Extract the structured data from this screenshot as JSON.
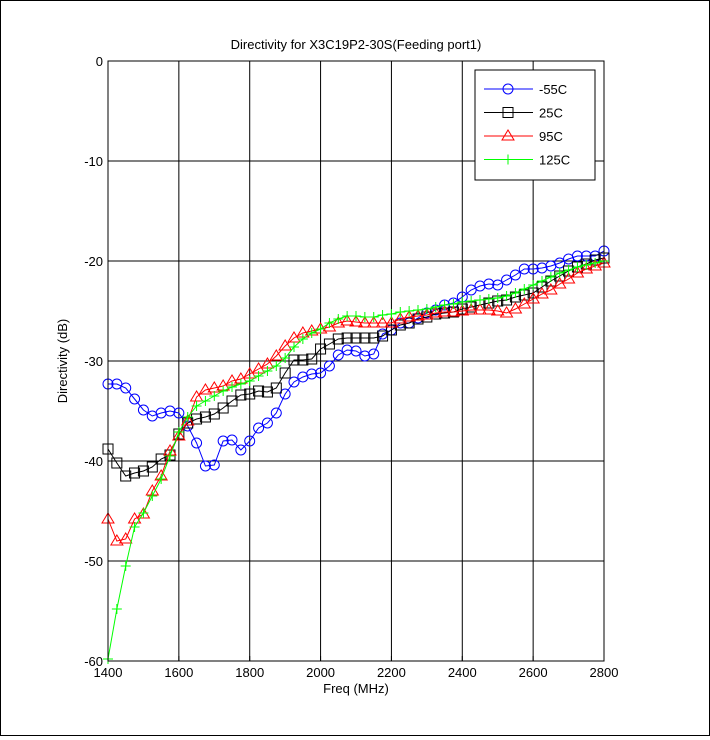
{
  "chart_data": {
    "type": "line",
    "title": "Directivity for X3C19P2-30S(Feeding port1)",
    "xlabel": "Freq (MHz)",
    "ylabel": "Directivity (dB)",
    "xlim": [
      1400,
      2800
    ],
    "ylim": [
      -60,
      0
    ],
    "xticks": [
      1400,
      1600,
      1800,
      2000,
      2200,
      2400,
      2600,
      2800
    ],
    "yticks": [
      0,
      -10,
      -20,
      -30,
      -40,
      -50,
      -60
    ],
    "grid": true,
    "legend_position": "top-right",
    "series": [
      {
        "name": "-55C",
        "color": "#0000ff",
        "marker": "circle",
        "x": [
          1400,
          1425,
          1450,
          1475,
          1500,
          1525,
          1550,
          1575,
          1600,
          1625,
          1650,
          1675,
          1700,
          1725,
          1750,
          1775,
          1800,
          1825,
          1850,
          1875,
          1900,
          1925,
          1950,
          1975,
          2000,
          2025,
          2050,
          2075,
          2100,
          2125,
          2150,
          2175,
          2200,
          2225,
          2250,
          2275,
          2300,
          2325,
          2350,
          2375,
          2400,
          2425,
          2450,
          2475,
          2500,
          2525,
          2550,
          2575,
          2600,
          2625,
          2650,
          2675,
          2700,
          2725,
          2750,
          2775,
          2800
        ],
        "y": [
          -32.3,
          -32.3,
          -32.7,
          -33.8,
          -34.9,
          -35.5,
          -35.2,
          -35.0,
          -35.2,
          -36.5,
          -38.2,
          -40.5,
          -40.4,
          -38.0,
          -37.9,
          -38.9,
          -38.0,
          -36.7,
          -36.2,
          -35.2,
          -33.3,
          -32.1,
          -31.6,
          -31.3,
          -31.2,
          -30.5,
          -29.4,
          -28.9,
          -29.0,
          -29.5,
          -29.3,
          -27.3,
          -26.9,
          -26.2,
          -26.2,
          -25.7,
          -25.2,
          -24.9,
          -24.4,
          -24.2,
          -23.6,
          -22.9,
          -22.5,
          -22.3,
          -22.4,
          -21.9,
          -21.4,
          -20.8,
          -20.8,
          -20.7,
          -20.5,
          -20.2,
          -19.8,
          -19.5,
          -19.5,
          -19.5,
          -19.0
        ]
      },
      {
        "name": "25C",
        "color": "#000000",
        "marker": "square",
        "x": [
          1400,
          1425,
          1450,
          1475,
          1500,
          1525,
          1550,
          1575,
          1600,
          1625,
          1650,
          1675,
          1700,
          1725,
          1750,
          1775,
          1800,
          1825,
          1850,
          1875,
          1900,
          1925,
          1950,
          1975,
          2000,
          2025,
          2050,
          2075,
          2100,
          2125,
          2150,
          2175,
          2200,
          2225,
          2250,
          2275,
          2300,
          2325,
          2350,
          2375,
          2400,
          2425,
          2450,
          2475,
          2500,
          2525,
          2550,
          2575,
          2600,
          2625,
          2650,
          2675,
          2700,
          2725,
          2750,
          2775,
          2800
        ],
        "y": [
          -38.8,
          -40.2,
          -41.5,
          -41.2,
          -41.0,
          -40.6,
          -39.8,
          -39.4,
          -37.3,
          -36.2,
          -35.8,
          -35.6,
          -35.3,
          -34.7,
          -34.0,
          -33.4,
          -33.3,
          -33.0,
          -33.1,
          -32.7,
          -31.2,
          -29.9,
          -29.9,
          -29.8,
          -28.8,
          -28.3,
          -27.8,
          -27.7,
          -27.7,
          -27.7,
          -27.7,
          -27.5,
          -26.9,
          -26.4,
          -26.2,
          -25.8,
          -25.6,
          -25.3,
          -25.2,
          -25.1,
          -24.8,
          -24.6,
          -24.4,
          -24.2,
          -24.0,
          -23.9,
          -23.6,
          -23.4,
          -23.2,
          -22.6,
          -22.0,
          -21.5,
          -21.0,
          -20.6,
          -20.3,
          -19.9,
          -19.7
        ]
      },
      {
        "name": "95C",
        "color": "#ff0000",
        "marker": "triangle",
        "x": [
          1400,
          1425,
          1450,
          1475,
          1500,
          1525,
          1550,
          1575,
          1600,
          1625,
          1650,
          1675,
          1700,
          1725,
          1750,
          1775,
          1800,
          1825,
          1850,
          1875,
          1900,
          1925,
          1950,
          1975,
          2000,
          2025,
          2050,
          2075,
          2100,
          2125,
          2150,
          2175,
          2200,
          2225,
          2250,
          2275,
          2300,
          2325,
          2350,
          2375,
          2400,
          2425,
          2450,
          2475,
          2500,
          2525,
          2550,
          2575,
          2600,
          2625,
          2650,
          2675,
          2700,
          2725,
          2750,
          2775,
          2800
        ],
        "y": [
          -45.8,
          -48.0,
          -47.8,
          -45.8,
          -45.3,
          -43.0,
          -41.5,
          -39.0,
          -37.5,
          -36.0,
          -33.6,
          -32.9,
          -32.7,
          -32.5,
          -32.0,
          -31.8,
          -31.3,
          -30.8,
          -30.3,
          -29.5,
          -28.5,
          -27.7,
          -27.2,
          -27.0,
          -26.8,
          -26.6,
          -26.2,
          -26.0,
          -26.1,
          -26.2,
          -26.2,
          -26.2,
          -26.2,
          -25.8,
          -25.6,
          -25.5,
          -25.4,
          -25.2,
          -25.1,
          -25.1,
          -25.0,
          -24.9,
          -24.9,
          -24.9,
          -25.0,
          -25.2,
          -24.8,
          -24.3,
          -23.8,
          -23.3,
          -22.9,
          -22.3,
          -21.8,
          -21.2,
          -20.8,
          -20.5,
          -20.2
        ]
      },
      {
        "name": "125C",
        "color": "#00ff00",
        "marker": "plus",
        "x": [
          1400,
          1425,
          1450,
          1475,
          1500,
          1525,
          1550,
          1575,
          1600,
          1625,
          1650,
          1675,
          1700,
          1725,
          1750,
          1775,
          1800,
          1825,
          1850,
          1875,
          1900,
          1925,
          1950,
          1975,
          2000,
          2025,
          2050,
          2075,
          2100,
          2125,
          2150,
          2175,
          2200,
          2225,
          2250,
          2275,
          2300,
          2325,
          2350,
          2375,
          2400,
          2425,
          2450,
          2475,
          2500,
          2525,
          2550,
          2575,
          2600,
          2625,
          2650,
          2675,
          2700,
          2725,
          2750,
          2775,
          2800
        ],
        "y": [
          -59.8,
          -54.8,
          -50.5,
          -46.6,
          -45.2,
          -43.5,
          -41.8,
          -39.5,
          -37.1,
          -35.6,
          -34.5,
          -34.0,
          -33.5,
          -33.0,
          -32.6,
          -32.3,
          -32.0,
          -31.5,
          -31.0,
          -30.5,
          -29.7,
          -28.6,
          -27.8,
          -27.2,
          -26.8,
          -26.2,
          -25.8,
          -25.5,
          -25.5,
          -25.6,
          -25.6,
          -25.4,
          -25.3,
          -25.1,
          -25.0,
          -24.9,
          -24.8,
          -24.6,
          -24.4,
          -24.3,
          -24.1,
          -24.0,
          -23.9,
          -23.8,
          -23.7,
          -23.5,
          -23.2,
          -22.8,
          -22.4,
          -22.0,
          -21.6,
          -21.2,
          -20.9,
          -20.6,
          -20.4,
          -20.2,
          -20.0
        ]
      }
    ]
  }
}
